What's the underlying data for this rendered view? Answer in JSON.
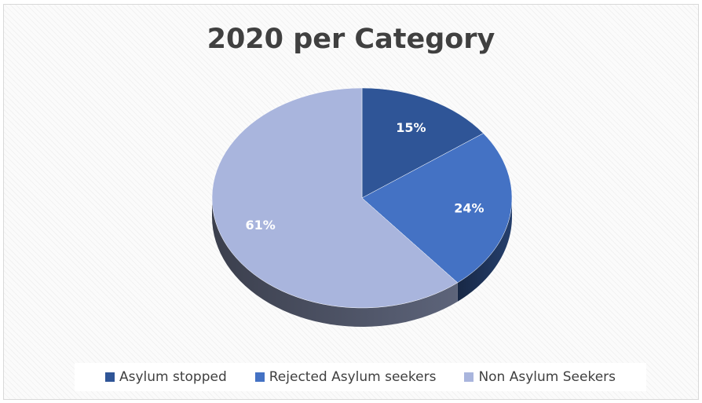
{
  "chart_data": {
    "type": "pie",
    "title": "2020 per Category",
    "style": "3d",
    "legend_position": "bottom",
    "series": [
      {
        "name": "Asylum stopped",
        "value": 15,
        "label": "15%",
        "color": "#2f5597"
      },
      {
        "name": "Rejected Asylum seekers",
        "value": 24,
        "label": "24%",
        "color": "#4472c4"
      },
      {
        "name": "Non Asylum Seekers",
        "value": 61,
        "label": "61%",
        "color": "#a9b5dd"
      }
    ]
  }
}
